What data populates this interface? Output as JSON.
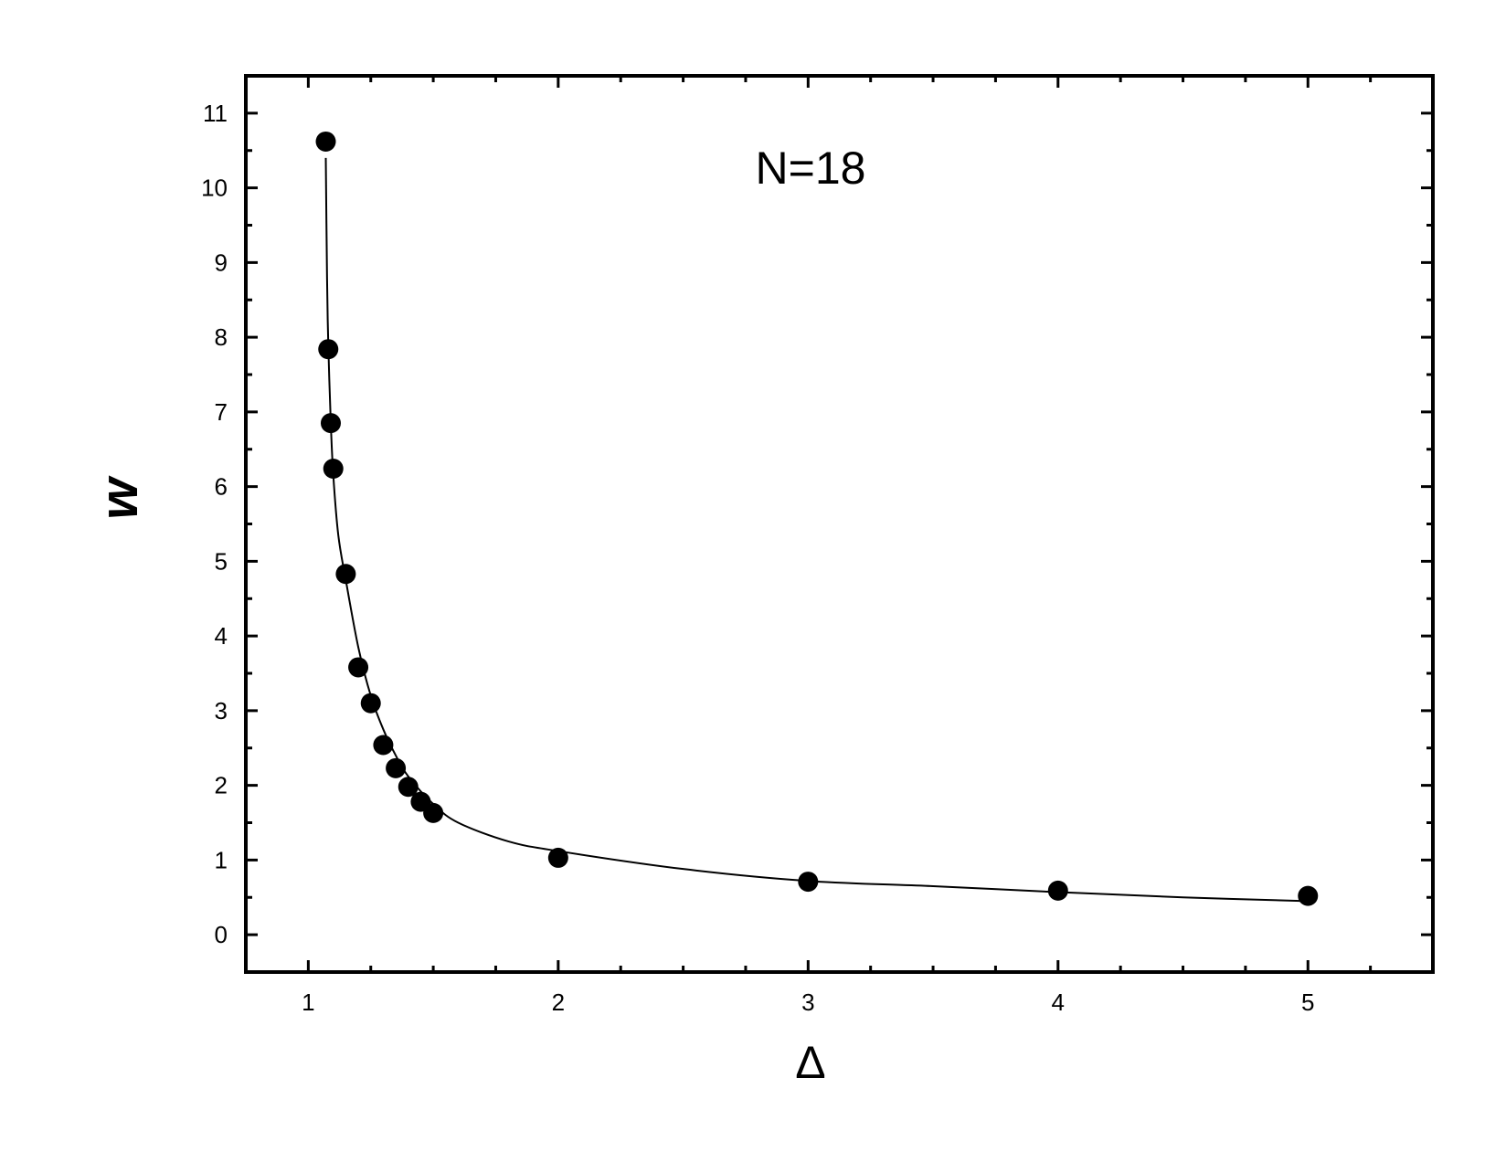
{
  "chart_data": {
    "type": "scatter",
    "title": "",
    "xlabel": "Δ",
    "ylabel": "w",
    "annotation": "N=18",
    "xlim": [
      0.75,
      5.5
    ],
    "ylim": [
      -0.5,
      11.5
    ],
    "x_ticks": [
      1,
      2,
      3,
      4,
      5
    ],
    "x_tick_labels": [
      "1",
      "2",
      "3",
      "4",
      "5"
    ],
    "y_ticks": [
      0,
      1,
      2,
      3,
      4,
      5,
      6,
      7,
      8,
      9,
      10,
      11
    ],
    "y_tick_labels": [
      "0",
      "1",
      "2",
      "3",
      "4",
      "5",
      "6",
      "7",
      "8",
      "9",
      "10",
      "11"
    ],
    "grid": false,
    "legend": "none",
    "colors": {
      "points": "#000000",
      "curve": "#000000",
      "axes": "#000000"
    },
    "series": [
      {
        "kind": "points",
        "x": [
          1.07,
          1.08,
          1.09,
          1.1,
          1.15,
          1.2,
          1.25,
          1.3,
          1.35,
          1.4,
          1.45,
          1.5,
          2,
          3,
          4,
          5
        ],
        "y": [
          10.62,
          7.84,
          6.85,
          6.24,
          4.83,
          3.58,
          3.1,
          2.54,
          2.23,
          1.98,
          1.78,
          1.63,
          1.03,
          0.71,
          0.59,
          0.52
        ]
      },
      {
        "kind": "fit-curve",
        "x": [
          1.07,
          1.075,
          1.08,
          1.09,
          1.1,
          1.12,
          1.15,
          1.2,
          1.25,
          1.3,
          1.35,
          1.4,
          1.5,
          1.6,
          1.8,
          2.0,
          2.5,
          3.0,
          3.5,
          4.0,
          4.5,
          5.0
        ],
        "y": [
          10.4,
          8.8,
          7.9,
          6.85,
          6.15,
          5.35,
          4.75,
          3.85,
          3.2,
          2.75,
          2.4,
          2.12,
          1.75,
          1.5,
          1.25,
          1.12,
          0.88,
          0.72,
          0.65,
          0.57,
          0.5,
          0.45
        ]
      }
    ]
  }
}
